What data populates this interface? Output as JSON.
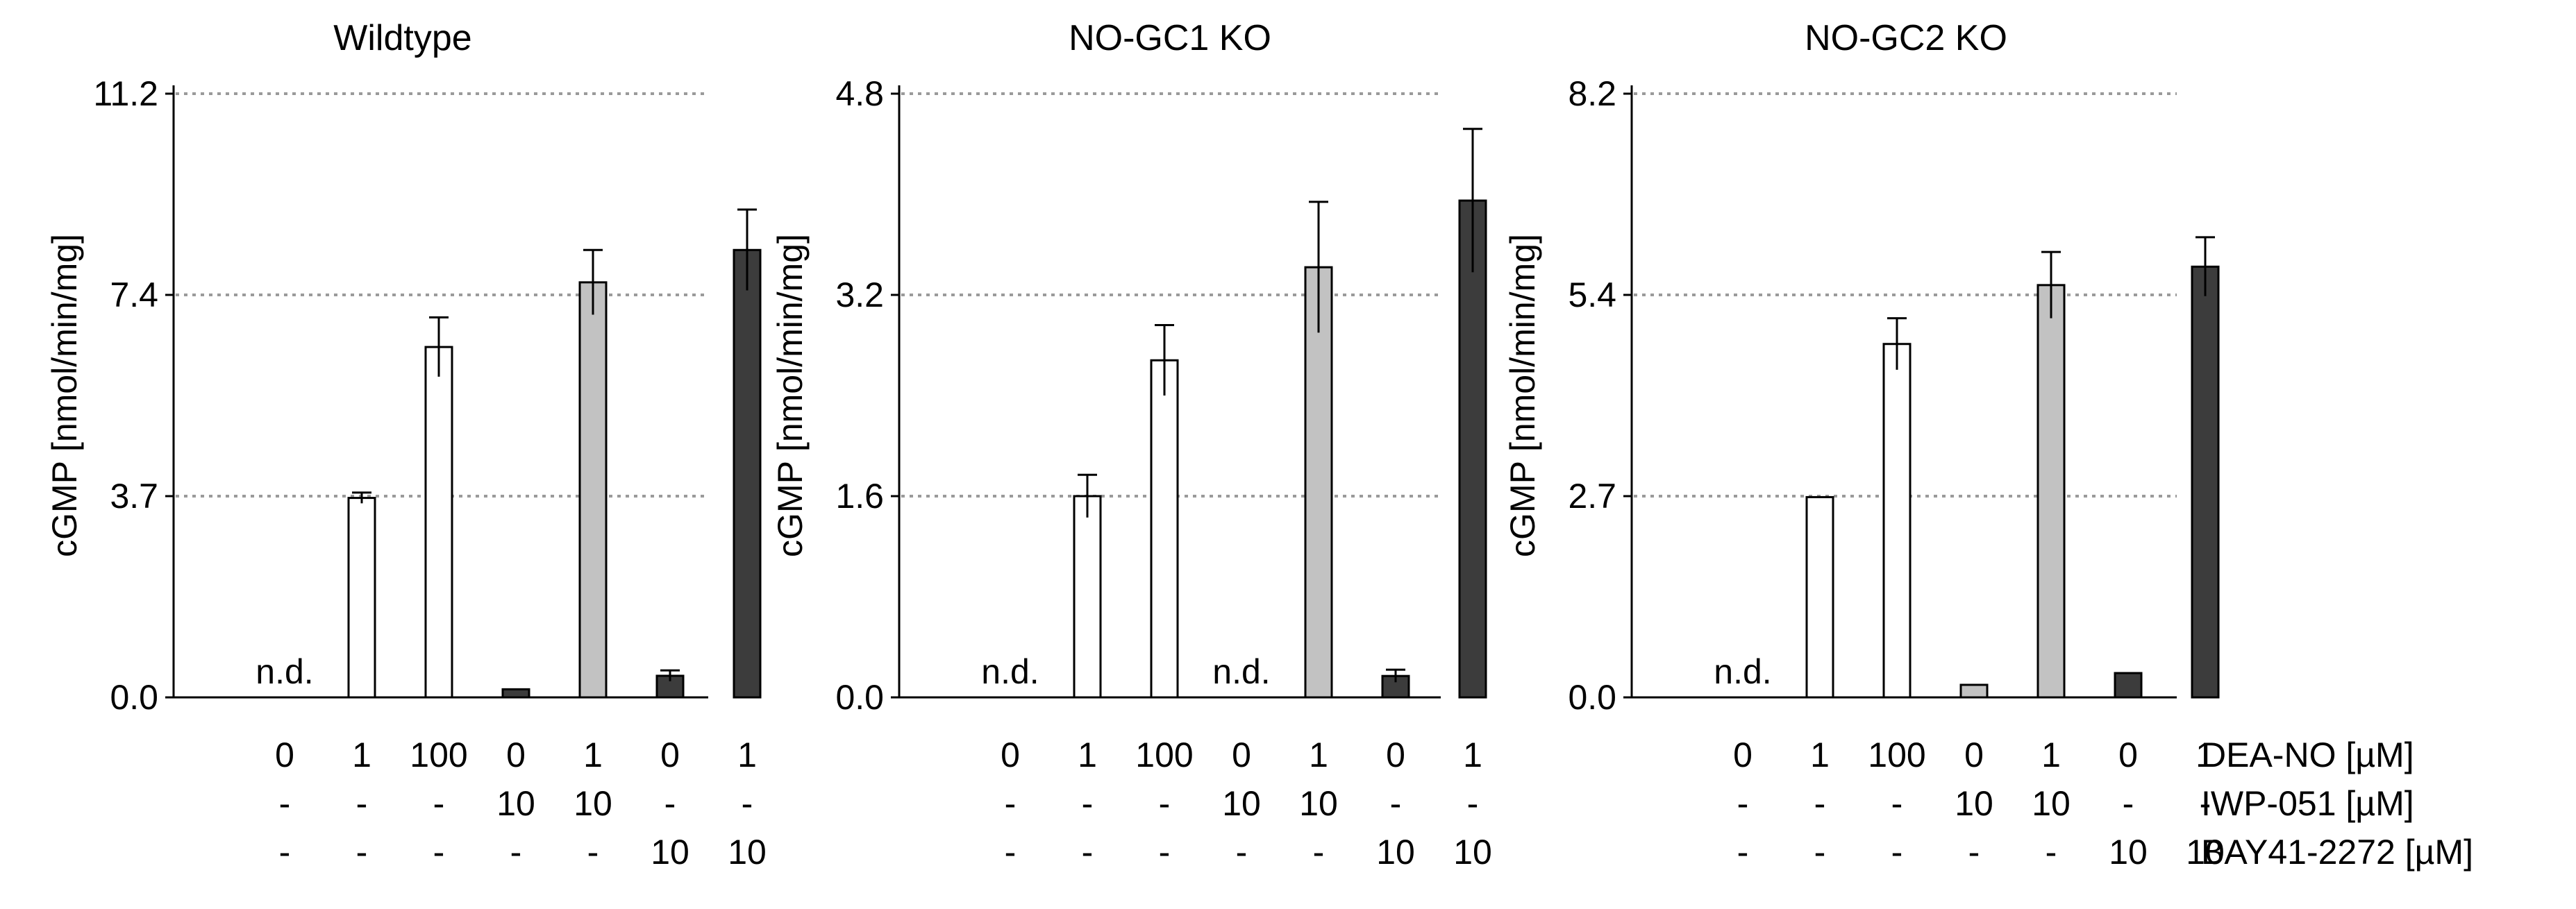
{
  "chart_data": [
    {
      "type": "bar",
      "title": "Wildtype",
      "ylabel": "cGMP [nmol/min/mg]",
      "yticks": [
        "0.0",
        "3.7",
        "7.4",
        "11.2"
      ],
      "ylim": [
        0,
        11.2
      ],
      "grid": "dotted horizontal at y ticks",
      "categories": [
        "1",
        "2",
        "3",
        "4",
        "5",
        "6",
        "7"
      ],
      "values": [
        null,
        3.7,
        6.5,
        0.15,
        7.7,
        0.4,
        8.3
      ],
      "errors": [
        null,
        0.1,
        0.55,
        0.0,
        0.6,
        0.1,
        0.75
      ],
      "bar_colors": [
        "#ffffff",
        "#ffffff",
        "#ffffff",
        "#3c3c3c",
        "#c2c2c2",
        "#3c3c3c",
        "#3c3c3c"
      ],
      "annotations": [
        {
          "category_index": 0,
          "text": "n.d."
        }
      ]
    },
    {
      "type": "bar",
      "title": "NO-GC1 KO",
      "ylabel": "cGMP [nmol/min/mg]",
      "yticks": [
        "0.0",
        "1.6",
        "3.2",
        "4.8"
      ],
      "ylim": [
        0,
        4.8
      ],
      "grid": "dotted horizontal at y ticks",
      "categories": [
        "1",
        "2",
        "3",
        "4",
        "5",
        "6",
        "7"
      ],
      "values": [
        null,
        1.6,
        2.68,
        null,
        3.42,
        0.17,
        3.95
      ],
      "errors": [
        null,
        0.17,
        0.28,
        null,
        0.52,
        0.05,
        0.57
      ],
      "bar_colors": [
        "#ffffff",
        "#ffffff",
        "#ffffff",
        "#ffffff",
        "#c2c2c2",
        "#3c3c3c",
        "#3c3c3c"
      ],
      "annotations": [
        {
          "category_index": 0,
          "text": "n.d."
        },
        {
          "category_index": 3,
          "text": "n.d."
        }
      ]
    },
    {
      "type": "bar",
      "title": "NO-GC2 KO",
      "ylabel": "cGMP [nmol/min/mg]",
      "yticks": [
        "0.0",
        "2.7",
        "5.4",
        "8.2"
      ],
      "ylim": [
        0,
        8.2
      ],
      "grid": "dotted horizontal at y ticks",
      "categories": [
        "1",
        "2",
        "3",
        "4",
        "5",
        "6",
        "7"
      ],
      "values": [
        null,
        2.72,
        4.8,
        0.17,
        5.6,
        0.33,
        5.85
      ],
      "errors": [
        null,
        0.0,
        0.35,
        0.0,
        0.45,
        0.0,
        0.4
      ],
      "bar_colors": [
        "#ffffff",
        "#ffffff",
        "#ffffff",
        "#c2c2c2",
        "#c2c2c2",
        "#3c3c3c",
        "#3c3c3c"
      ],
      "annotations": [
        {
          "category_index": 0,
          "text": "n.d."
        }
      ]
    }
  ],
  "conditions": [
    {
      "label": "DEA-NO [µM]",
      "values": [
        "0",
        "1",
        "100",
        "0",
        "1",
        "0",
        "1"
      ]
    },
    {
      "label": "IWP-051 [µM]",
      "values": [
        "-",
        "-",
        "-",
        "10",
        "10",
        "-",
        "-"
      ]
    },
    {
      "label": "BAY41-2272 [µM]",
      "values": [
        "-",
        "-",
        "-",
        "-",
        "-",
        "10",
        "10"
      ]
    }
  ]
}
